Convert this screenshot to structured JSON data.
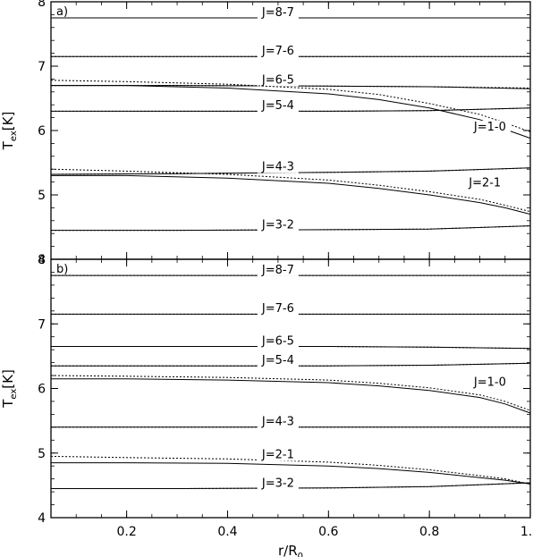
{
  "chart_data": [
    {
      "type": "line",
      "panel_label": "a)",
      "xlim": [
        0.05,
        1.0
      ],
      "ylim": [
        4,
        8
      ],
      "xticks": [
        "0.2",
        "0.4",
        "0.6",
        "0.8",
        "1.0"
      ],
      "xtick_values": [
        0.2,
        0.4,
        0.6,
        0.8,
        1.0
      ],
      "yticks": [
        "4",
        "5",
        "6",
        "7",
        "8"
      ],
      "ytick_values": [
        4,
        5,
        6,
        7,
        8
      ],
      "ylabel_main": "T",
      "ylabel_sub": "ex",
      "ylabel_unit": "[K]",
      "line_styles": [
        "solid",
        "dotted"
      ],
      "series": [
        {
          "name": "J=8-7",
          "x": [
            0.05,
            0.3,
            0.6,
            0.8,
            1.0
          ],
          "solid": [
            7.75,
            7.75,
            7.75,
            7.75,
            7.75
          ],
          "dotted": [
            7.75,
            7.75,
            7.75,
            7.75,
            7.75
          ],
          "label_x": 0.5,
          "label_y": 7.78
        },
        {
          "name": "J=7-6",
          "x": [
            0.05,
            0.3,
            0.6,
            0.8,
            1.0
          ],
          "solid": [
            7.15,
            7.15,
            7.15,
            7.15,
            7.15
          ],
          "dotted": [
            7.15,
            7.15,
            7.15,
            7.15,
            7.15
          ],
          "label_x": 0.5,
          "label_y": 7.18
        },
        {
          "name": "J=6-5",
          "x": [
            0.05,
            0.3,
            0.6,
            0.8,
            1.0
          ],
          "solid": [
            6.7,
            6.7,
            6.69,
            6.68,
            6.65
          ],
          "dotted": [
            6.7,
            6.7,
            6.69,
            6.68,
            6.66
          ],
          "label_x": 0.5,
          "label_y": 6.73
        },
        {
          "name": "J=5-4",
          "x": [
            0.05,
            0.3,
            0.6,
            0.8,
            1.0
          ],
          "solid": [
            6.3,
            6.3,
            6.3,
            6.31,
            6.35
          ],
          "dotted": [
            6.3,
            6.3,
            6.3,
            6.31,
            6.35
          ],
          "label_x": 0.5,
          "label_y": 6.33
        },
        {
          "name": "J=1-0",
          "x": [
            0.05,
            0.2,
            0.4,
            0.6,
            0.7,
            0.8,
            0.9,
            0.95,
            1.0
          ],
          "solid": [
            6.7,
            6.7,
            6.66,
            6.57,
            6.48,
            6.35,
            6.17,
            6.02,
            5.88
          ],
          "dotted": [
            6.78,
            6.76,
            6.72,
            6.64,
            6.56,
            6.42,
            6.25,
            6.12,
            5.98
          ],
          "label_x": 0.92,
          "label_y": 6.0
        },
        {
          "name": "J=4-3",
          "x": [
            0.05,
            0.3,
            0.6,
            0.8,
            1.0
          ],
          "solid": [
            5.32,
            5.33,
            5.35,
            5.37,
            5.42
          ],
          "dotted": [
            5.32,
            5.33,
            5.35,
            5.37,
            5.42
          ],
          "label_x": 0.5,
          "label_y": 5.38
        },
        {
          "name": "J=2-1",
          "x": [
            0.05,
            0.2,
            0.4,
            0.6,
            0.7,
            0.8,
            0.9,
            0.95,
            1.0
          ],
          "solid": [
            5.3,
            5.3,
            5.26,
            5.18,
            5.1,
            5.0,
            4.88,
            4.8,
            4.7
          ],
          "dotted": [
            5.4,
            5.37,
            5.32,
            5.23,
            5.15,
            5.05,
            4.93,
            4.84,
            4.74
          ],
          "label_x": 0.91,
          "label_y": 5.13
        },
        {
          "name": "J=3-2",
          "x": [
            0.05,
            0.3,
            0.6,
            0.8,
            1.0
          ],
          "solid": [
            4.45,
            4.45,
            4.46,
            4.47,
            4.52
          ],
          "dotted": [
            4.45,
            4.45,
            4.46,
            4.47,
            4.52
          ],
          "label_x": 0.5,
          "label_y": 4.48
        }
      ]
    },
    {
      "type": "line",
      "panel_label": "b)",
      "xlim": [
        0.05,
        1.0
      ],
      "ylim": [
        4,
        8
      ],
      "xticks": [
        "0.2",
        "0.4",
        "0.6",
        "0.8",
        "1.0"
      ],
      "xtick_values": [
        0.2,
        0.4,
        0.6,
        0.8,
        1.0
      ],
      "yticks": [
        "4",
        "5",
        "6",
        "7",
        "8"
      ],
      "ytick_values": [
        4,
        5,
        6,
        7,
        8
      ],
      "ylabel_main": "T",
      "ylabel_sub": "ex",
      "ylabel_unit": "[K]",
      "xlabel_main": "r/R",
      "xlabel_sub": "0",
      "line_styles": [
        "solid",
        "dotted"
      ],
      "series": [
        {
          "name": "J=8-7",
          "x": [
            0.05,
            0.3,
            0.6,
            0.8,
            1.0
          ],
          "solid": [
            7.75,
            7.75,
            7.75,
            7.75,
            7.75
          ],
          "dotted": [
            7.75,
            7.75,
            7.75,
            7.75,
            7.75
          ],
          "label_x": 0.5,
          "label_y": 7.78
        },
        {
          "name": "J=7-6",
          "x": [
            0.05,
            0.3,
            0.6,
            0.8,
            1.0
          ],
          "solid": [
            7.15,
            7.15,
            7.15,
            7.15,
            7.15
          ],
          "dotted": [
            7.15,
            7.15,
            7.15,
            7.15,
            7.15
          ],
          "label_x": 0.5,
          "label_y": 7.18
        },
        {
          "name": "J=6-5",
          "x": [
            0.05,
            0.3,
            0.6,
            0.8,
            1.0
          ],
          "solid": [
            6.65,
            6.65,
            6.65,
            6.64,
            6.62
          ],
          "dotted": [
            6.65,
            6.65,
            6.65,
            6.64,
            6.62
          ],
          "label_x": 0.5,
          "label_y": 6.68
        },
        {
          "name": "J=5-4",
          "x": [
            0.05,
            0.3,
            0.6,
            0.8,
            1.0
          ],
          "solid": [
            6.35,
            6.35,
            6.35,
            6.36,
            6.39
          ],
          "dotted": [
            6.35,
            6.35,
            6.35,
            6.36,
            6.39
          ],
          "label_x": 0.5,
          "label_y": 6.38
        },
        {
          "name": "J=1-0",
          "x": [
            0.05,
            0.2,
            0.4,
            0.6,
            0.7,
            0.8,
            0.9,
            0.95,
            1.0
          ],
          "solid": [
            6.15,
            6.15,
            6.13,
            6.09,
            6.04,
            5.97,
            5.86,
            5.76,
            5.62
          ],
          "dotted": [
            6.2,
            6.19,
            6.17,
            6.13,
            6.08,
            6.01,
            5.9,
            5.8,
            5.66
          ],
          "label_x": 0.92,
          "label_y": 6.04
        },
        {
          "name": "J=4-3",
          "x": [
            0.05,
            0.3,
            0.6,
            0.8,
            1.0
          ],
          "solid": [
            5.4,
            5.4,
            5.4,
            5.4,
            5.4
          ],
          "dotted": [
            5.4,
            5.4,
            5.4,
            5.4,
            5.4
          ],
          "label_x": 0.5,
          "label_y": 5.43
        },
        {
          "name": "J=2-1",
          "x": [
            0.05,
            0.2,
            0.4,
            0.6,
            0.7,
            0.8,
            0.9,
            0.95,
            1.0
          ],
          "solid": [
            4.85,
            4.85,
            4.84,
            4.8,
            4.76,
            4.7,
            4.62,
            4.58,
            4.52
          ],
          "dotted": [
            4.95,
            4.93,
            4.91,
            4.86,
            4.81,
            4.74,
            4.65,
            4.6,
            4.52
          ],
          "label_x": 0.5,
          "label_y": 4.92
        },
        {
          "name": "J=3-2",
          "x": [
            0.05,
            0.3,
            0.6,
            0.8,
            1.0
          ],
          "solid": [
            4.45,
            4.45,
            4.46,
            4.48,
            4.54
          ],
          "dotted": [
            4.45,
            4.45,
            4.46,
            4.48,
            4.54
          ],
          "label_x": 0.5,
          "label_y": 4.48
        }
      ]
    }
  ]
}
